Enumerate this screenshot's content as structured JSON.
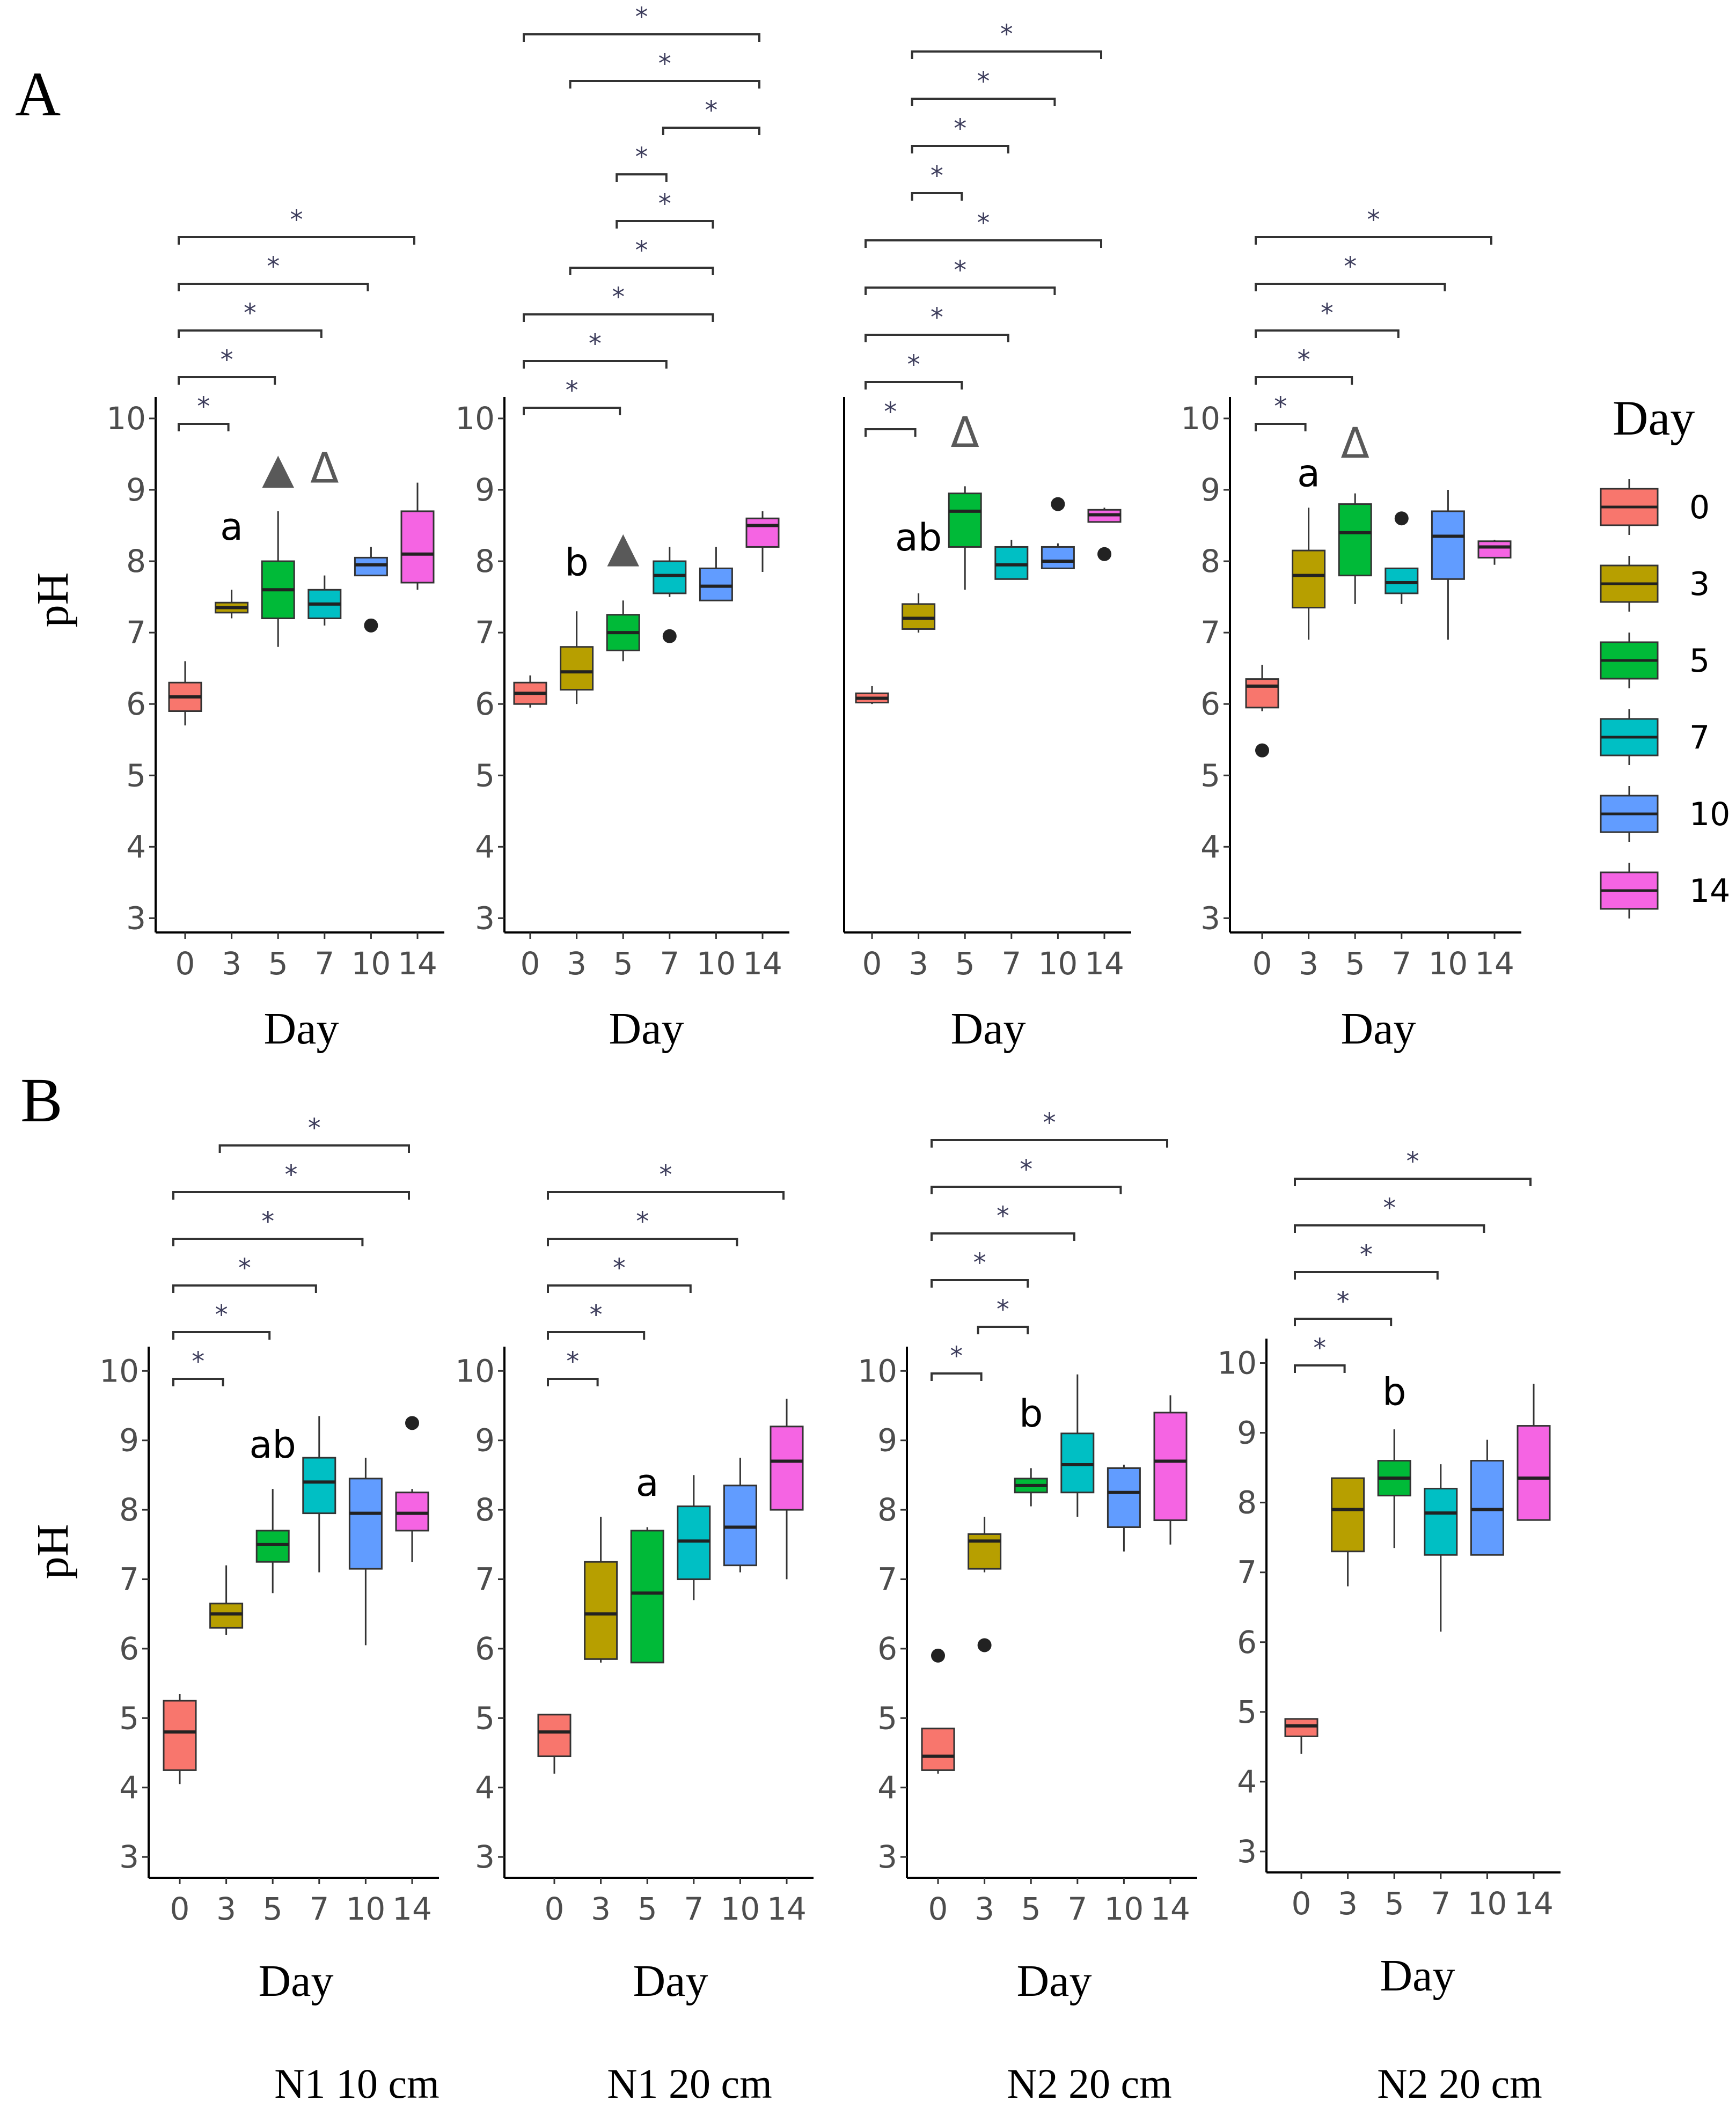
{
  "legend": {
    "title": "Day",
    "entries": [
      {
        "label": "0",
        "color": "#F8766D"
      },
      {
        "label": "3",
        "color": "#B79F00"
      },
      {
        "label": "5",
        "color": "#00BA38"
      },
      {
        "label": "7",
        "color": "#00BFC4"
      },
      {
        "label": "10",
        "color": "#619CFF"
      },
      {
        "label": "14",
        "color": "#F564E3"
      }
    ]
  },
  "rows": [
    {
      "label": "A",
      "ylabel": "pH"
    },
    {
      "label": "B",
      "ylabel": "pH"
    }
  ],
  "captions": [
    "N1 10 cm",
    "N1 20 cm",
    "N2 20 cm",
    "N2 20 cm"
  ],
  "chart_data": [
    {
      "type": "box",
      "row": "A",
      "title": "N1 10 cm",
      "xlabel": "Day",
      "ylabel": "pH",
      "categories": [
        "0",
        "3",
        "5",
        "7",
        "10",
        "14"
      ],
      "ylim": [
        2.8,
        10.3
      ],
      "yticks": [
        3,
        4,
        5,
        6,
        7,
        8,
        9,
        10
      ],
      "boxes": [
        {
          "min": 5.7,
          "q1": 5.9,
          "median": 6.1,
          "q3": 6.3,
          "max": 6.6,
          "outliers": []
        },
        {
          "min": 7.2,
          "q1": 7.28,
          "median": 7.35,
          "q3": 7.42,
          "max": 7.6,
          "outliers": []
        },
        {
          "min": 6.8,
          "q1": 7.2,
          "median": 7.6,
          "q3": 8.0,
          "max": 8.7,
          "outliers": []
        },
        {
          "min": 7.1,
          "q1": 7.2,
          "median": 7.4,
          "q3": 7.6,
          "max": 7.8,
          "outliers": []
        },
        {
          "min": 7.8,
          "q1": 7.8,
          "median": 7.95,
          "q3": 8.05,
          "max": 8.2,
          "outliers": [
            7.1
          ]
        },
        {
          "min": 7.6,
          "q1": 7.7,
          "median": 8.1,
          "q3": 8.7,
          "max": 9.1,
          "outliers": []
        }
      ],
      "annotations": [
        {
          "text": "a",
          "category": "3",
          "y": 8.3
        },
        {
          "text": "▲",
          "category": "5",
          "y": 9.1,
          "color": "#595959"
        },
        {
          "text": "Δ",
          "category": "7",
          "y": 9.1,
          "color": "#595959"
        }
      ],
      "significance": [
        {
          "from": "0",
          "to": "3",
          "label": "*"
        },
        {
          "from": "0",
          "to": "5",
          "label": "*"
        },
        {
          "from": "0",
          "to": "7",
          "label": "*"
        },
        {
          "from": "0",
          "to": "10",
          "label": "*"
        },
        {
          "from": "0",
          "to": "14",
          "label": "*"
        }
      ]
    },
    {
      "type": "box",
      "row": "A",
      "title": "N1 20 cm",
      "xlabel": "Day",
      "ylabel": "pH",
      "categories": [
        "0",
        "3",
        "5",
        "7",
        "10",
        "14"
      ],
      "ylim": [
        2.8,
        10.3
      ],
      "yticks": [
        3,
        4,
        5,
        6,
        7,
        8,
        9,
        10
      ],
      "boxes": [
        {
          "min": 5.95,
          "q1": 6.0,
          "median": 6.15,
          "q3": 6.3,
          "max": 6.4,
          "outliers": []
        },
        {
          "min": 6.0,
          "q1": 6.2,
          "median": 6.45,
          "q3": 6.8,
          "max": 7.3,
          "outliers": []
        },
        {
          "min": 6.6,
          "q1": 6.75,
          "median": 7.0,
          "q3": 7.25,
          "max": 7.45,
          "outliers": []
        },
        {
          "min": 7.5,
          "q1": 7.55,
          "median": 7.8,
          "q3": 8.0,
          "max": 8.2,
          "outliers": [
            6.95
          ]
        },
        {
          "min": 7.45,
          "q1": 7.45,
          "median": 7.65,
          "q3": 7.9,
          "max": 8.2,
          "outliers": []
        },
        {
          "min": 7.85,
          "q1": 8.2,
          "median": 8.5,
          "q3": 8.6,
          "max": 8.7,
          "outliers": []
        }
      ],
      "annotations": [
        {
          "text": "b",
          "category": "3",
          "y": 7.8
        },
        {
          "text": "▲",
          "category": "5",
          "y": 8.0,
          "color": "#595959"
        }
      ],
      "significance": [
        {
          "from": "0",
          "to": "5",
          "label": "*"
        },
        {
          "from": "0",
          "to": "7",
          "label": "*"
        },
        {
          "from": "0",
          "to": "10",
          "label": "*"
        },
        {
          "from": "3",
          "to": "10",
          "label": "*"
        },
        {
          "from": "5",
          "to": "10",
          "label": "*"
        },
        {
          "from": "5",
          "to": "7",
          "label": "*"
        },
        {
          "from": "7",
          "to": "14",
          "label": "*"
        },
        {
          "from": "3",
          "to": "14",
          "label": "*"
        },
        {
          "from": "0",
          "to": "14",
          "label": "*"
        }
      ]
    },
    {
      "type": "box",
      "row": "A",
      "title": "N2 20 cm",
      "xlabel": "Day",
      "ylabel": "pH",
      "categories": [
        "0",
        "3",
        "5",
        "7",
        "10",
        "14"
      ],
      "ylim": [
        2.8,
        10.3
      ],
      "yticks": [],
      "boxes": [
        {
          "min": 6.0,
          "q1": 6.02,
          "median": 6.08,
          "q3": 6.15,
          "max": 6.25,
          "outliers": []
        },
        {
          "min": 7.0,
          "q1": 7.05,
          "median": 7.2,
          "q3": 7.4,
          "max": 7.55,
          "outliers": []
        },
        {
          "min": 7.6,
          "q1": 8.2,
          "median": 8.7,
          "q3": 8.95,
          "max": 9.05,
          "outliers": []
        },
        {
          "min": 7.75,
          "q1": 7.75,
          "median": 7.95,
          "q3": 8.2,
          "max": 8.3,
          "outliers": []
        },
        {
          "min": 7.9,
          "q1": 7.9,
          "median": 8.0,
          "q3": 8.2,
          "max": 8.25,
          "outliers": [
            8.8
          ]
        },
        {
          "min": 8.55,
          "q1": 8.55,
          "median": 8.65,
          "q3": 8.72,
          "max": 8.75,
          "outliers": [
            8.1
          ]
        }
      ],
      "annotations": [
        {
          "text": "ab",
          "category": "3",
          "y": 8.15
        },
        {
          "text": "Δ",
          "category": "5",
          "y": 9.6,
          "color": "#595959"
        }
      ],
      "significance": [
        {
          "from": "0",
          "to": "3",
          "label": "*"
        },
        {
          "from": "0",
          "to": "5",
          "label": "*"
        },
        {
          "from": "0",
          "to": "7",
          "label": "*"
        },
        {
          "from": "0",
          "to": "10",
          "label": "*"
        },
        {
          "from": "0",
          "to": "14",
          "label": "*"
        },
        {
          "from": "3",
          "to": "5",
          "label": "*"
        },
        {
          "from": "3",
          "to": "7",
          "label": "*"
        },
        {
          "from": "3",
          "to": "10",
          "label": "*"
        },
        {
          "from": "3",
          "to": "14",
          "label": "*"
        }
      ]
    },
    {
      "type": "box",
      "row": "A",
      "title": "N2 20 cm",
      "xlabel": "Day",
      "ylabel": "pH",
      "categories": [
        "0",
        "3",
        "5",
        "7",
        "10",
        "14"
      ],
      "ylim": [
        2.8,
        10.3
      ],
      "yticks": [
        3,
        4,
        5,
        6,
        7,
        8,
        9,
        10
      ],
      "boxes": [
        {
          "min": 5.9,
          "q1": 5.95,
          "median": 6.25,
          "q3": 6.35,
          "max": 6.55,
          "outliers": [
            5.35
          ]
        },
        {
          "min": 6.9,
          "q1": 7.35,
          "median": 7.8,
          "q3": 8.15,
          "max": 8.75,
          "outliers": []
        },
        {
          "min": 7.4,
          "q1": 7.8,
          "median": 8.4,
          "q3": 8.8,
          "max": 8.95,
          "outliers": []
        },
        {
          "min": 7.4,
          "q1": 7.55,
          "median": 7.7,
          "q3": 7.9,
          "max": 7.9,
          "outliers": [
            8.6
          ]
        },
        {
          "min": 6.9,
          "q1": 7.75,
          "median": 8.35,
          "q3": 8.7,
          "max": 9.0,
          "outliers": []
        },
        {
          "min": 7.95,
          "q1": 8.05,
          "median": 8.2,
          "q3": 8.28,
          "max": 8.3,
          "outliers": []
        }
      ],
      "annotations": [
        {
          "text": "a",
          "category": "3",
          "y": 9.05
        },
        {
          "text": "Δ",
          "category": "5",
          "y": 9.45,
          "color": "#595959"
        }
      ],
      "significance": [
        {
          "from": "0",
          "to": "3",
          "label": "*"
        },
        {
          "from": "0",
          "to": "5",
          "label": "*"
        },
        {
          "from": "0",
          "to": "7",
          "label": "*"
        },
        {
          "from": "0",
          "to": "10",
          "label": "*"
        },
        {
          "from": "0",
          "to": "14",
          "label": "*"
        }
      ]
    },
    {
      "type": "box",
      "row": "B",
      "title": "N1 10 cm",
      "xlabel": "Day",
      "ylabel": "pH",
      "categories": [
        "0",
        "3",
        "5",
        "7",
        "10",
        "14"
      ],
      "ylim": [
        2.7,
        10.35
      ],
      "yticks": [
        3,
        4,
        5,
        6,
        7,
        8,
        9,
        10
      ],
      "boxes": [
        {
          "min": 4.05,
          "q1": 4.25,
          "median": 4.8,
          "q3": 5.25,
          "max": 5.35,
          "outliers": []
        },
        {
          "min": 6.2,
          "q1": 6.3,
          "median": 6.5,
          "q3": 6.65,
          "max": 7.2,
          "outliers": []
        },
        {
          "min": 6.8,
          "q1": 7.25,
          "median": 7.5,
          "q3": 7.7,
          "max": 8.3,
          "outliers": []
        },
        {
          "min": 7.1,
          "q1": 7.95,
          "median": 8.4,
          "q3": 8.75,
          "max": 9.35,
          "outliers": []
        },
        {
          "min": 6.05,
          "q1": 7.15,
          "median": 7.95,
          "q3": 8.45,
          "max": 8.75,
          "outliers": []
        },
        {
          "min": 7.25,
          "q1": 7.7,
          "median": 7.95,
          "q3": 8.25,
          "max": 8.3,
          "outliers": [
            9.25
          ]
        }
      ],
      "annotations": [
        {
          "text": "ab",
          "category": "5",
          "y": 8.75
        }
      ],
      "significance": [
        {
          "from": "0",
          "to": "3",
          "label": "*"
        },
        {
          "from": "0",
          "to": "5",
          "label": "*"
        },
        {
          "from": "0",
          "to": "7",
          "label": "*"
        },
        {
          "from": "0",
          "to": "10",
          "label": "*"
        },
        {
          "from": "0",
          "to": "14",
          "label": "*"
        },
        {
          "from": "3",
          "to": "14",
          "label": "*"
        }
      ]
    },
    {
      "type": "box",
      "row": "B",
      "title": "N1 20 cm",
      "xlabel": "Day",
      "ylabel": "pH",
      "categories": [
        "0",
        "3",
        "5",
        "7",
        "10",
        "14"
      ],
      "ylim": [
        2.7,
        10.35
      ],
      "yticks": [
        3,
        4,
        5,
        6,
        7,
        8,
        9,
        10
      ],
      "boxes": [
        {
          "min": 4.2,
          "q1": 4.45,
          "median": 4.8,
          "q3": 5.05,
          "max": 5.05,
          "outliers": []
        },
        {
          "min": 5.8,
          "q1": 5.85,
          "median": 6.5,
          "q3": 7.25,
          "max": 7.9,
          "outliers": []
        },
        {
          "min": 5.8,
          "q1": 5.8,
          "median": 6.8,
          "q3": 7.7,
          "max": 7.75,
          "outliers": []
        },
        {
          "min": 6.7,
          "q1": 7.0,
          "median": 7.55,
          "q3": 8.05,
          "max": 8.5,
          "outliers": []
        },
        {
          "min": 7.1,
          "q1": 7.2,
          "median": 7.75,
          "q3": 8.35,
          "max": 8.75,
          "outliers": []
        },
        {
          "min": 7.0,
          "q1": 8.0,
          "median": 8.7,
          "q3": 9.2,
          "max": 9.6,
          "outliers": []
        }
      ],
      "annotations": [
        {
          "text": "a",
          "category": "5",
          "y": 8.2
        }
      ],
      "significance": [
        {
          "from": "0",
          "to": "3",
          "label": "*"
        },
        {
          "from": "0",
          "to": "5",
          "label": "*"
        },
        {
          "from": "0",
          "to": "7",
          "label": "*"
        },
        {
          "from": "0",
          "to": "10",
          "label": "*"
        },
        {
          "from": "0",
          "to": "14",
          "label": "*"
        }
      ]
    },
    {
      "type": "box",
      "row": "B",
      "title": "N2 20 cm",
      "xlabel": "Day",
      "ylabel": "pH",
      "categories": [
        "0",
        "3",
        "5",
        "7",
        "10",
        "14"
      ],
      "ylim": [
        2.7,
        10.35
      ],
      "yticks": [
        3,
        4,
        5,
        6,
        7,
        8,
        9,
        10
      ],
      "boxes": [
        {
          "min": 4.2,
          "q1": 4.25,
          "median": 4.45,
          "q3": 4.85,
          "max": 4.85,
          "outliers": [
            5.9
          ]
        },
        {
          "min": 7.1,
          "q1": 7.15,
          "median": 7.55,
          "q3": 7.65,
          "max": 7.9,
          "outliers": [
            6.05
          ]
        },
        {
          "min": 8.05,
          "q1": 8.25,
          "median": 8.35,
          "q3": 8.45,
          "max": 8.6,
          "outliers": []
        },
        {
          "min": 7.9,
          "q1": 8.25,
          "median": 8.65,
          "q3": 9.1,
          "max": 9.95,
          "outliers": []
        },
        {
          "min": 7.4,
          "q1": 7.75,
          "median": 8.25,
          "q3": 8.6,
          "max": 8.65,
          "outliers": []
        },
        {
          "min": 7.5,
          "q1": 7.85,
          "median": 8.7,
          "q3": 9.4,
          "max": 9.65,
          "outliers": []
        }
      ],
      "annotations": [
        {
          "text": "b",
          "category": "5",
          "y": 9.2
        }
      ],
      "significance": [
        {
          "from": "0",
          "to": "3",
          "label": "*"
        },
        {
          "from": "3",
          "to": "5",
          "label": "*"
        },
        {
          "from": "0",
          "to": "5",
          "label": "*"
        },
        {
          "from": "0",
          "to": "7",
          "label": "*"
        },
        {
          "from": "0",
          "to": "10",
          "label": "*"
        },
        {
          "from": "0",
          "to": "14",
          "label": "*"
        }
      ]
    },
    {
      "type": "box",
      "row": "B",
      "title": "N2 20 cm",
      "xlabel": "Day",
      "ylabel": "pH",
      "categories": [
        "0",
        "3",
        "5",
        "7",
        "10",
        "14"
      ],
      "ylim": [
        2.7,
        10.35
      ],
      "yticks": [
        3,
        4,
        5,
        6,
        7,
        8,
        9,
        10
      ],
      "boxes": [
        {
          "min": 4.4,
          "q1": 4.65,
          "median": 4.8,
          "q3": 4.9,
          "max": 4.9,
          "outliers": []
        },
        {
          "min": 6.8,
          "q1": 7.3,
          "median": 7.9,
          "q3": 8.35,
          "max": 8.35,
          "outliers": []
        },
        {
          "min": 7.35,
          "q1": 8.1,
          "median": 8.35,
          "q3": 8.6,
          "max": 9.05,
          "outliers": []
        },
        {
          "min": 6.15,
          "q1": 7.25,
          "median": 7.85,
          "q3": 8.2,
          "max": 8.55,
          "outliers": []
        },
        {
          "min": 7.25,
          "q1": 7.25,
          "median": 7.9,
          "q3": 8.6,
          "max": 8.9,
          "outliers": []
        },
        {
          "min": 7.75,
          "q1": 7.75,
          "median": 8.35,
          "q3": 9.1,
          "max": 9.7,
          "outliers": []
        }
      ],
      "annotations": [
        {
          "text": "b",
          "category": "5",
          "y": 9.4
        }
      ],
      "significance": [
        {
          "from": "0",
          "to": "3",
          "label": "*"
        },
        {
          "from": "0",
          "to": "5",
          "label": "*"
        },
        {
          "from": "0",
          "to": "7",
          "label": "*"
        },
        {
          "from": "0",
          "to": "10",
          "label": "*"
        },
        {
          "from": "0",
          "to": "14",
          "label": "*"
        }
      ]
    }
  ]
}
